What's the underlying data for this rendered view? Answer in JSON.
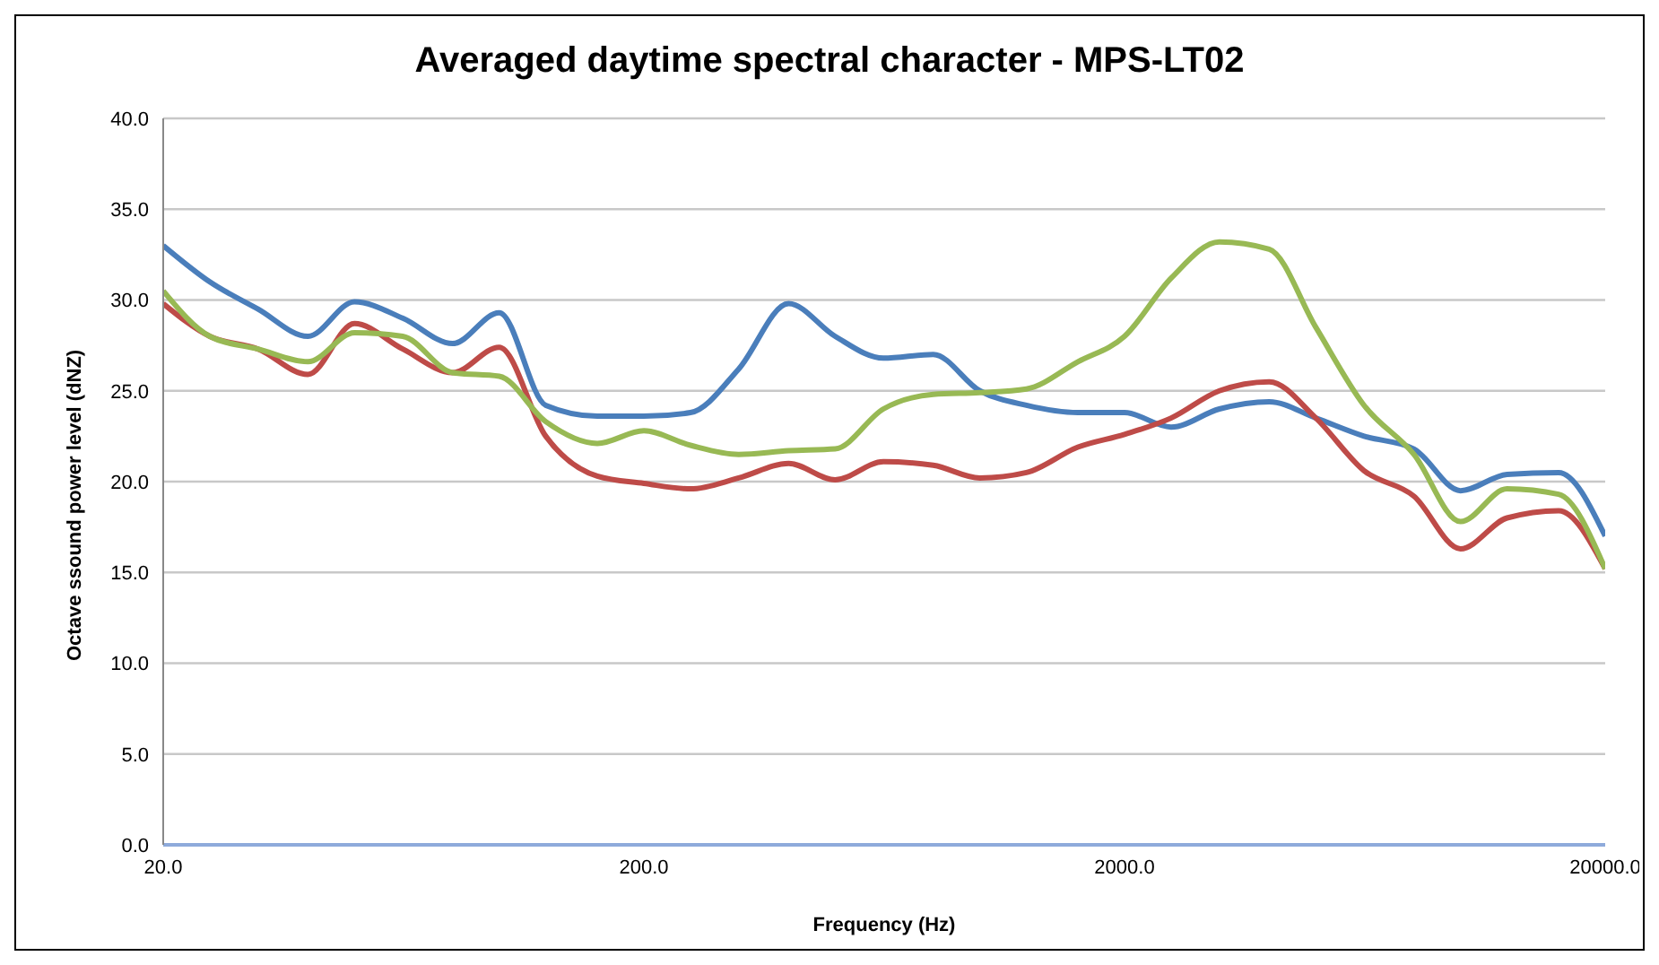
{
  "chart_data": {
    "type": "line",
    "title": "Averaged daytime spectral character - MPS-LT02",
    "xlabel": "Frequency (Hz)",
    "ylabel": "Octave ssound power level (dNZ)",
    "x": [
      20,
      25,
      31.5,
      40,
      50,
      63,
      80,
      100,
      125,
      160,
      200,
      250,
      315,
      400,
      500,
      630,
      800,
      1000,
      1250,
      1600,
      2000,
      2500,
      3150,
      4000,
      5000,
      6300,
      8000,
      10000,
      12500,
      16000,
      20000
    ],
    "series": [
      {
        "color": "#4a7ebb",
        "values": [
          33.0,
          31.0,
          29.5,
          28.0,
          29.9,
          29.0,
          27.6,
          29.3,
          24.2,
          23.6,
          23.6,
          23.8,
          26.2,
          29.8,
          28.0,
          26.8,
          27.0,
          25.0,
          24.2,
          23.8,
          23.8,
          23.0,
          24.0,
          24.4,
          23.5,
          22.5,
          21.8,
          19.5,
          20.4,
          20.5,
          17.0
        ]
      },
      {
        "color": "#be4b48",
        "values": [
          29.8,
          28.0,
          27.3,
          25.9,
          28.7,
          27.3,
          26.0,
          27.4,
          22.5,
          20.3,
          19.9,
          19.6,
          20.2,
          21.0,
          20.1,
          21.1,
          20.9,
          20.2,
          20.5,
          21.9,
          22.6,
          23.5,
          25.0,
          25.5,
          23.5,
          20.6,
          19.2,
          16.3,
          18.0,
          18.4,
          15.2
        ]
      },
      {
        "color": "#98b954",
        "values": [
          30.5,
          28.0,
          27.3,
          26.6,
          28.2,
          28.0,
          26.0,
          25.8,
          23.3,
          22.1,
          22.8,
          22.0,
          21.5,
          21.7,
          21.8,
          24.0,
          24.8,
          24.9,
          25.1,
          26.6,
          28.0,
          31.2,
          33.2,
          32.8,
          28.5,
          24.2,
          21.5,
          17.8,
          19.6,
          19.3,
          15.2
        ]
      }
    ],
    "log": "x",
    "xlim": [
      20,
      20000
    ],
    "xticks": [
      {
        "value": 20,
        "label": "20.0"
      },
      {
        "value": 200,
        "label": "200.0"
      },
      {
        "value": 2000,
        "label": "2000.0"
      },
      {
        "value": 20000,
        "label": "20000.0"
      }
    ],
    "ylim": [
      0,
      40
    ],
    "yticks": [
      {
        "value": 0,
        "label": "0.0"
      },
      {
        "value": 5,
        "label": "5.0"
      },
      {
        "value": 10,
        "label": "10.0"
      },
      {
        "value": 15,
        "label": "15.0"
      },
      {
        "value": 20,
        "label": "20.0"
      },
      {
        "value": 25,
        "label": "25.0"
      },
      {
        "value": 30,
        "label": "30.0"
      },
      {
        "value": 35,
        "label": "35.0"
      },
      {
        "value": 40,
        "label": "40.0"
      }
    ],
    "grid": "y",
    "legend": false,
    "marker": "none",
    "line_style": "solid"
  }
}
